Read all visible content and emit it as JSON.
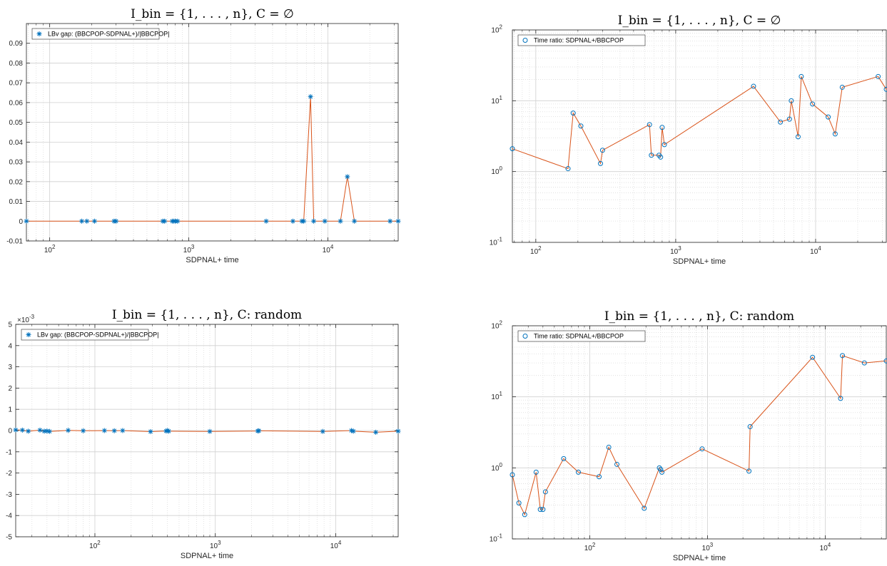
{
  "chart_data": [
    {
      "type": "line",
      "title": "I_bin = {1, . . . , n},   C = ∅",
      "xlabel": "SDPNAL+ time",
      "ylabel": "",
      "xscale": "log",
      "yscale": "linear",
      "xlim": [
        68,
        32000
      ],
      "ylim": [
        -0.01,
        0.1
      ],
      "yticks": [
        -0.01,
        0,
        0.01,
        0.02,
        0.03,
        0.04,
        0.05,
        0.06,
        0.07,
        0.08,
        0.09
      ],
      "ytick_labels": [
        "-0.01",
        "0",
        "0.01",
        "0.02",
        "0.03",
        "0.04",
        "0.05",
        "0.06",
        "0.07",
        "0.08",
        "0.09"
      ],
      "xtick_labels": [
        "10",
        "10",
        "10"
      ],
      "xtick_exps": [
        "2",
        "3",
        "4"
      ],
      "xticks": [
        100,
        1000,
        10000
      ],
      "y_exponent": "",
      "grid": true,
      "legend": "top-left",
      "marker": "star",
      "series": [
        {
          "name": "LBv gap: (BBCPOP-SDPNAL+)/|BBCPOP|",
          "x": [
            68,
            170,
            185,
            210,
            290,
            300,
            650,
            670,
            760,
            780,
            800,
            830,
            3600,
            5600,
            6500,
            6700,
            7500,
            7900,
            9500,
            12300,
            13800,
            15500,
            28000,
            32000
          ],
          "y": [
            0,
            0,
            0,
            0,
            0,
            0,
            0,
            0,
            0,
            0,
            0,
            0,
            0,
            0,
            0,
            0,
            0.063,
            0,
            0,
            0,
            0.0225,
            0,
            0,
            0
          ]
        }
      ]
    },
    {
      "type": "line",
      "title": "I_bin = {1, . . . , n},   C = ∅",
      "xlabel": "SDPNAL+ time",
      "ylabel": "",
      "xscale": "log",
      "yscale": "log",
      "xlim": [
        68,
        32000
      ],
      "ylim": [
        0.1,
        100
      ],
      "yticks": [
        0.1,
        1,
        10,
        100
      ],
      "ytick_labels": [
        "10",
        "10",
        "10",
        "10"
      ],
      "ytick_exps": [
        "-1",
        "0",
        "1",
        "2"
      ],
      "xtick_labels": [
        "10",
        "10",
        "10"
      ],
      "xtick_exps": [
        "2",
        "3",
        "4"
      ],
      "xticks": [
        100,
        1000,
        10000
      ],
      "grid": true,
      "legend": "top-left",
      "marker": "circle",
      "series": [
        {
          "name": "Time ratio: SDPNAL+/BBCPOP",
          "x": [
            68,
            170,
            185,
            210,
            290,
            300,
            650,
            670,
            760,
            780,
            800,
            830,
            3600,
            5600,
            6500,
            6700,
            7500,
            7900,
            9500,
            12300,
            13800,
            15500,
            28000,
            32000
          ],
          "y": [
            2.1,
            1.1,
            6.7,
            4.4,
            1.3,
            2.0,
            4.6,
            1.7,
            1.7,
            1.6,
            4.2,
            2.4,
            16.0,
            5.0,
            5.5,
            10.0,
            3.1,
            22.0,
            9.0,
            5.9,
            3.4,
            15.5,
            22.0,
            14.5
          ]
        }
      ]
    },
    {
      "type": "line",
      "title": "I_bin = {1, . . . , n},   C: random",
      "xlabel": "SDPNAL+ time",
      "ylabel": "",
      "xscale": "log",
      "yscale": "linear",
      "xlim": [
        22,
        33000
      ],
      "ylim": [
        -0.005,
        0.005
      ],
      "yticks": [
        -0.005,
        -0.004,
        -0.003,
        -0.002,
        -0.001,
        0,
        0.001,
        0.002,
        0.003,
        0.004,
        0.005
      ],
      "ytick_labels": [
        "-5",
        "-4",
        "-3",
        "-2",
        "-1",
        "0",
        "1",
        "2",
        "3",
        "4",
        "5"
      ],
      "xtick_labels": [
        "10",
        "10",
        "10"
      ],
      "xtick_exps": [
        "2",
        "3",
        "4"
      ],
      "xticks": [
        100,
        1000,
        10000
      ],
      "y_exponent": "×10",
      "y_exponent_power": "-3",
      "grid": true,
      "legend": "top-left",
      "marker": "star",
      "series": [
        {
          "name": "LBv gap: (BBCPOP-SDPNAL+)/|BBCPOP|",
          "x": [
            22,
            25,
            28,
            35,
            38,
            40,
            42,
            60,
            80,
            120,
            145,
            170,
            290,
            390,
            400,
            410,
            900,
            2250,
            2300,
            7800,
            13500,
            14000,
            21500,
            33000
          ],
          "y": [
            3e-05,
            2e-05,
            -3e-05,
            2e-05,
            -3e-05,
            -2e-05,
            -4e-05,
            1e-05,
            -1e-05,
            0.0,
            -1e-05,
            0.0,
            -5e-05,
            -2e-05,
            0.0,
            -3e-05,
            -4e-05,
            -2e-05,
            -1e-05,
            -4e-05,
            0.0,
            -3e-05,
            -8e-05,
            -3e-05
          ]
        }
      ]
    },
    {
      "type": "line",
      "title": "I_bin = {1, . . . , n},   C: random",
      "xlabel": "SDPNAL+ time",
      "ylabel": "",
      "xscale": "log",
      "yscale": "log",
      "xlim": [
        22,
        33000
      ],
      "ylim": [
        0.1,
        100
      ],
      "yticks": [
        0.1,
        1,
        10,
        100
      ],
      "ytick_labels": [
        "10",
        "10",
        "10",
        "10"
      ],
      "ytick_exps": [
        "-1",
        "0",
        "1",
        "2"
      ],
      "xtick_labels": [
        "10",
        "10",
        "10"
      ],
      "xtick_exps": [
        "2",
        "3",
        "4"
      ],
      "xticks": [
        100,
        1000,
        10000
      ],
      "grid": true,
      "legend": "top-left",
      "marker": "circle",
      "series": [
        {
          "name": "Time ratio: SDPNAL+/BBCPOP",
          "x": [
            22,
            25,
            28,
            35,
            38,
            40,
            42,
            60,
            80,
            120,
            145,
            170,
            290,
            390,
            400,
            410,
            900,
            2250,
            2300,
            7800,
            13500,
            14000,
            21500,
            33000
          ],
          "y": [
            0.8,
            0.32,
            0.22,
            0.87,
            0.26,
            0.26,
            0.46,
            1.35,
            0.87,
            0.75,
            1.95,
            1.12,
            0.27,
            1.0,
            0.95,
            0.87,
            1.85,
            0.9,
            3.8,
            36.0,
            9.5,
            38.0,
            30.0,
            32.0
          ]
        }
      ]
    }
  ]
}
